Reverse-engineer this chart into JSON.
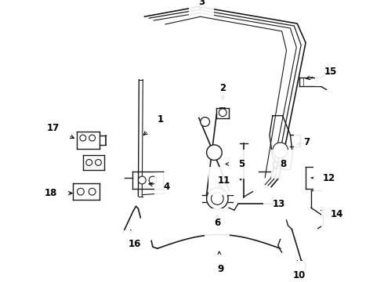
{
  "background_color": "#ffffff",
  "line_color": "#1a1a1a",
  "label_color": "#000000",
  "label_fontsize": 8.5,
  "label_fontweight": "bold"
}
